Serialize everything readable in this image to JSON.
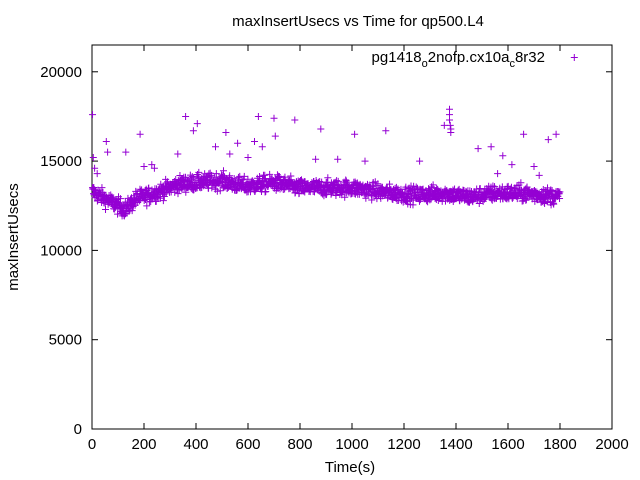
{
  "chart_data": {
    "type": "scatter",
    "title": "maxInsertUsecs vs Time for qp500.L4",
    "xlabel": "Time(s)",
    "ylabel": "maxInsertUsecs",
    "xlim": [
      0,
      2000
    ],
    "ylim": [
      0,
      21500
    ],
    "xticks": [
      0,
      200,
      400,
      600,
      800,
      1000,
      1200,
      1400,
      1600,
      1800,
      2000
    ],
    "yticks": [
      0,
      5000,
      10000,
      15000,
      20000
    ],
    "grid": false,
    "legend_position": "top-right",
    "series": [
      {
        "name": "pg1418_o2nofp.cx10a_c8r32",
        "legend_parts": {
          "a": "pg1418",
          "b": "o",
          "c": "2nofp.cx10a",
          "d": "c",
          "e": "8r32"
        },
        "color": "#9400d3",
        "marker": "plus",
        "baseline": [
          [
            0,
            13300
          ],
          [
            50,
            12900
          ],
          [
            100,
            12500
          ],
          [
            130,
            12300
          ],
          [
            170,
            12900
          ],
          [
            220,
            13100
          ],
          [
            280,
            13400
          ],
          [
            330,
            13700
          ],
          [
            400,
            13800
          ],
          [
            500,
            13900
          ],
          [
            550,
            13700
          ],
          [
            600,
            13600
          ],
          [
            700,
            13800
          ],
          [
            800,
            13500
          ],
          [
            900,
            13500
          ],
          [
            1000,
            13500
          ],
          [
            1050,
            13400
          ],
          [
            1150,
            13200
          ],
          [
            1250,
            13100
          ],
          [
            1350,
            13200
          ],
          [
            1450,
            13000
          ],
          [
            1550,
            13200
          ],
          [
            1650,
            13200
          ],
          [
            1800,
            13000
          ]
        ],
        "jitter": 450,
        "x_start": 2,
        "x_end": 1800,
        "x_step": 1.25,
        "outliers": [
          [
            2,
            17600
          ],
          [
            5,
            15200
          ],
          [
            10,
            14600
          ],
          [
            20,
            14300
          ],
          [
            55,
            16100
          ],
          [
            60,
            15500
          ],
          [
            130,
            15500
          ],
          [
            185,
            16500
          ],
          [
            200,
            14700
          ],
          [
            230,
            14800
          ],
          [
            240,
            14600
          ],
          [
            330,
            15400
          ],
          [
            390,
            16700
          ],
          [
            405,
            17100
          ],
          [
            360,
            17500
          ],
          [
            475,
            15800
          ],
          [
            515,
            16600
          ],
          [
            530,
            15400
          ],
          [
            560,
            16000
          ],
          [
            600,
            15200
          ],
          [
            625,
            16100
          ],
          [
            640,
            17500
          ],
          [
            655,
            15800
          ],
          [
            700,
            17400
          ],
          [
            705,
            16400
          ],
          [
            780,
            17300
          ],
          [
            860,
            15100
          ],
          [
            880,
            16800
          ],
          [
            945,
            15100
          ],
          [
            1010,
            16500
          ],
          [
            1050,
            15000
          ],
          [
            1130,
            16700
          ],
          [
            1260,
            15000
          ],
          [
            1355,
            17000
          ],
          [
            1375,
            17900
          ],
          [
            1375,
            17600
          ],
          [
            1375,
            17300
          ],
          [
            1378,
            17000
          ],
          [
            1380,
            16800
          ],
          [
            1380,
            16600
          ],
          [
            1485,
            15700
          ],
          [
            1535,
            15800
          ],
          [
            1560,
            14300
          ],
          [
            1580,
            15300
          ],
          [
            1615,
            14800
          ],
          [
            1660,
            16500
          ],
          [
            1700,
            14700
          ],
          [
            1720,
            14200
          ],
          [
            1755,
            16200
          ],
          [
            1785,
            16500
          ]
        ],
        "legend_sample": [
          1855,
          20800
        ]
      }
    ]
  }
}
